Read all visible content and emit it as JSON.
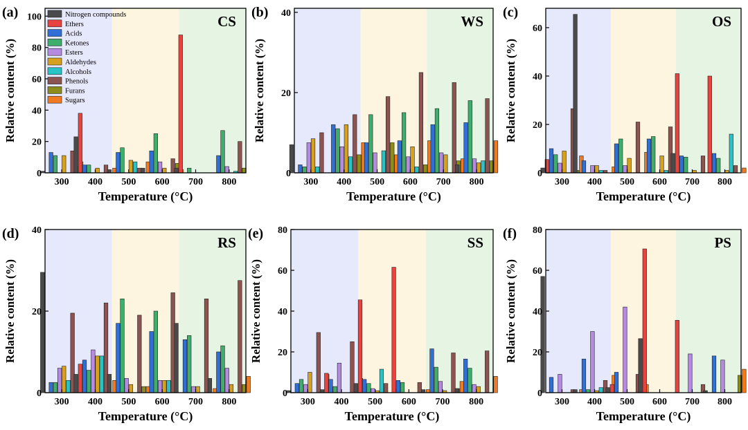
{
  "figure": {
    "legend": {
      "entries": [
        "Nitrogen compounds",
        "Ethers",
        "Acids",
        "Ketones",
        "Esters",
        "Aldehydes",
        "Alcohols",
        "Phenols",
        "Furans",
        "Sugars"
      ],
      "colors": [
        "#4a4a4a",
        "#e8433f",
        "#2f6fd6",
        "#3fae6c",
        "#b48be0",
        "#d6a21d",
        "#27c3c6",
        "#8c5450",
        "#8c8c1a",
        "#f07a22"
      ]
    },
    "region_colors": [
      "#e6e8fb",
      "#fdf5e0",
      "#e6f4e4"
    ]
  },
  "chart_data": [
    {
      "type": "bar",
      "panel_label": "(a)",
      "title": "CS",
      "xlabel": "Temperature (°C)",
      "ylabel": "Relative content (%)",
      "ylim": [
        0,
        105
      ],
      "yticks": [
        0,
        20,
        40,
        60,
        80,
        100
      ],
      "categories": [
        "300",
        "400",
        "500",
        "600",
        "700",
        "800"
      ],
      "series": [
        {
          "name": "Nitrogen compounds",
          "values": [
            1,
            23,
            2,
            3,
            3,
            0
          ]
        },
        {
          "name": "Ethers",
          "values": [
            0,
            38,
            0,
            0,
            88,
            0
          ]
        },
        {
          "name": "Acids",
          "values": [
            13,
            5,
            13,
            14,
            0,
            11
          ]
        },
        {
          "name": "Ketones",
          "values": [
            11,
            5,
            16,
            25,
            3,
            27
          ]
        },
        {
          "name": "Esters",
          "values": [
            0,
            0,
            0,
            7,
            0,
            4
          ]
        },
        {
          "name": "Aldehydes",
          "values": [
            11,
            3,
            8,
            3,
            0,
            0
          ]
        },
        {
          "name": "Alcohols",
          "values": [
            0,
            0,
            7,
            0,
            0,
            1
          ]
        },
        {
          "name": "Phenols",
          "values": [
            14,
            5,
            3,
            9,
            0,
            20
          ]
        },
        {
          "name": "Furans",
          "values": [
            4,
            0,
            0,
            6,
            0,
            3
          ]
        },
        {
          "name": "Sugars",
          "values": [
            7,
            3,
            7,
            2,
            0,
            0
          ]
        }
      ]
    },
    {
      "type": "bar",
      "panel_label": "(b)",
      "title": "WS",
      "xlabel": "Temperature (°C)",
      "ylabel": "Relative content (%)",
      "ylim": [
        0,
        41
      ],
      "yticks": [
        0,
        20,
        40
      ],
      "categories": [
        "300",
        "400",
        "500",
        "600",
        "700",
        "800"
      ],
      "series": [
        {
          "name": "Nitrogen compounds",
          "values": [
            7,
            0,
            0,
            0,
            0,
            2
          ]
        },
        {
          "name": "Ethers",
          "values": [
            0,
            0,
            0,
            0,
            0,
            0
          ]
        },
        {
          "name": "Acids",
          "values": [
            2,
            12,
            7.5,
            8,
            12,
            12.5
          ]
        },
        {
          "name": "Ketones",
          "values": [
            1.5,
            11,
            14.5,
            15,
            16,
            18
          ]
        },
        {
          "name": "Esters",
          "values": [
            7.5,
            6.5,
            5,
            4,
            5,
            3.5
          ]
        },
        {
          "name": "Aldehydes",
          "values": [
            8.5,
            12,
            0,
            6.5,
            4.5,
            2.5
          ]
        },
        {
          "name": "Alcohols",
          "values": [
            1.5,
            4,
            5.5,
            1.5,
            0,
            3
          ]
        },
        {
          "name": "Phenols",
          "values": [
            10,
            14.5,
            19,
            25,
            22.5,
            18.5
          ]
        },
        {
          "name": "Furans",
          "values": [
            0,
            4.5,
            7.5,
            2,
            3,
            3
          ]
        },
        {
          "name": "Sugars",
          "values": [
            0,
            7.5,
            4.5,
            8,
            3.5,
            8
          ]
        }
      ]
    },
    {
      "type": "bar",
      "panel_label": "(c)",
      "title": "OS",
      "xlabel": "Temperature (°C)",
      "ylabel": "Relative content (%)",
      "ylim": [
        0,
        68
      ],
      "yticks": [
        0,
        20,
        40,
        60
      ],
      "categories": [
        "300",
        "400",
        "500",
        "600",
        "700",
        "800"
      ],
      "series": [
        {
          "name": "Nitrogen compounds",
          "values": [
            2,
            65.5,
            0,
            0,
            8,
            0
          ]
        },
        {
          "name": "Ethers",
          "values": [
            5.5,
            0,
            0,
            0,
            41,
            40
          ]
        },
        {
          "name": "Acids",
          "values": [
            10,
            5,
            12,
            14,
            7,
            8
          ]
        },
        {
          "name": "Ketones",
          "values": [
            7.5,
            0,
            14,
            15,
            6.5,
            6
          ]
        },
        {
          "name": "Esters",
          "values": [
            4,
            3,
            3,
            0,
            0,
            0
          ]
        },
        {
          "name": "Aldehydes",
          "values": [
            9,
            3,
            6,
            7,
            1,
            1
          ]
        },
        {
          "name": "Alcohols",
          "values": [
            0,
            1,
            0,
            1,
            0,
            16
          ]
        },
        {
          "name": "Phenols",
          "values": [
            26.5,
            1,
            21,
            19,
            7,
            3
          ]
        },
        {
          "name": "Furans",
          "values": [
            1,
            0,
            0,
            0,
            0,
            0
          ]
        },
        {
          "name": "Sugars",
          "values": [
            7,
            2.5,
            8.5,
            6.5,
            0,
            2
          ]
        }
      ]
    },
    {
      "type": "bar",
      "panel_label": "(d)",
      "title": "RS",
      "xlabel": "Temperature (°C)",
      "ylabel": "Relative content (%)",
      "ylim": [
        0,
        40
      ],
      "yticks": [
        0,
        20,
        40
      ],
      "categories": [
        "300",
        "400",
        "500",
        "600",
        "700",
        "800"
      ],
      "series": [
        {
          "name": "Nitrogen compounds",
          "values": [
            29.5,
            4.5,
            4.5,
            0,
            17,
            3.5
          ]
        },
        {
          "name": "Ethers",
          "values": [
            0,
            7,
            0,
            0,
            0,
            0
          ]
        },
        {
          "name": "Acids",
          "values": [
            2.5,
            8,
            17,
            15,
            13,
            10
          ]
        },
        {
          "name": "Ketones",
          "values": [
            2.5,
            5.5,
            23,
            20,
            14,
            11.5
          ]
        },
        {
          "name": "Esters",
          "values": [
            6,
            10.5,
            3.5,
            3,
            1.5,
            6
          ]
        },
        {
          "name": "Aldehydes",
          "values": [
            6.5,
            9,
            2,
            3,
            1.5,
            2
          ]
        },
        {
          "name": "Alcohols",
          "values": [
            3,
            9,
            0,
            3,
            0,
            0
          ]
        },
        {
          "name": "Phenols",
          "values": [
            19.5,
            22,
            19,
            24.5,
            23,
            27.5
          ]
        },
        {
          "name": "Furans",
          "values": [
            0,
            0,
            1.5,
            0,
            0,
            2
          ]
        },
        {
          "name": "Sugars",
          "values": [
            1.5,
            3,
            1.5,
            0,
            1,
            4
          ]
        }
      ]
    },
    {
      "type": "bar",
      "panel_label": "(e)",
      "title": "SS",
      "xlabel": "Temperature (°C)",
      "ylabel": "Relative content (%)",
      "ylim": [
        0,
        80
      ],
      "yticks": [
        0,
        20,
        40,
        60,
        80
      ],
      "categories": [
        "300",
        "400",
        "500",
        "600",
        "700",
        "800"
      ],
      "series": [
        {
          "name": "Nitrogen compounds",
          "values": [
            1,
            1.5,
            4.5,
            0,
            1.5,
            2
          ]
        },
        {
          "name": "Ethers",
          "values": [
            0,
            9.5,
            45.5,
            61.5,
            0,
            0
          ]
        },
        {
          "name": "Acids",
          "values": [
            4.5,
            6.5,
            6.5,
            6,
            21.5,
            16.5
          ]
        },
        {
          "name": "Ketones",
          "values": [
            6.5,
            3,
            4.5,
            5,
            12.5,
            12
          ]
        },
        {
          "name": "Esters",
          "values": [
            4,
            14.5,
            2,
            0,
            5.5,
            4
          ]
        },
        {
          "name": "Aldehydes",
          "values": [
            10,
            0,
            1,
            0,
            1,
            3
          ]
        },
        {
          "name": "Alcohols",
          "values": [
            0,
            0,
            11.5,
            0,
            0,
            0
          ]
        },
        {
          "name": "Phenols",
          "values": [
            29.5,
            25,
            4.5,
            5,
            19.5,
            20.5
          ]
        },
        {
          "name": "Furans",
          "values": [
            0,
            0,
            0,
            0,
            2,
            0
          ]
        },
        {
          "name": "Sugars",
          "values": [
            9,
            7,
            1.5,
            1.5,
            5.5,
            8
          ]
        }
      ]
    },
    {
      "type": "bar",
      "panel_label": "(f)",
      "title": "PS",
      "xlabel": "Temperature (°C)",
      "ylabel": "Relative content (%)",
      "ylim": [
        0,
        80
      ],
      "yticks": [
        0,
        20,
        40,
        60,
        80
      ],
      "categories": [
        "300",
        "400",
        "500",
        "600",
        "700",
        "800"
      ],
      "series": [
        {
          "name": "Nitrogen compounds",
          "values": [
            57,
            1.5,
            2.5,
            26.5,
            0,
            1
          ]
        },
        {
          "name": "Ethers",
          "values": [
            0,
            0,
            4,
            70.5,
            35.5,
            0
          ]
        },
        {
          "name": "Acids",
          "values": [
            7.5,
            16.5,
            10,
            0,
            0,
            18
          ]
        },
        {
          "name": "Ketones",
          "values": [
            0,
            1.5,
            0,
            0,
            0,
            0
          ]
        },
        {
          "name": "Esters",
          "values": [
            9,
            30,
            42,
            0,
            19,
            16
          ]
        },
        {
          "name": "Aldehydes",
          "values": [
            0,
            1,
            0,
            0,
            0,
            0
          ]
        },
        {
          "name": "Alcohols",
          "values": [
            0,
            2.5,
            0,
            0,
            0,
            0
          ]
        },
        {
          "name": "Phenols",
          "values": [
            1.5,
            6,
            9,
            0,
            4,
            0
          ]
        },
        {
          "name": "Furans",
          "values": [
            0,
            0,
            0,
            0,
            0,
            8.5
          ]
        },
        {
          "name": "Sugars",
          "values": [
            1.5,
            8.5,
            4,
            0,
            0,
            11.5
          ]
        }
      ]
    }
  ]
}
